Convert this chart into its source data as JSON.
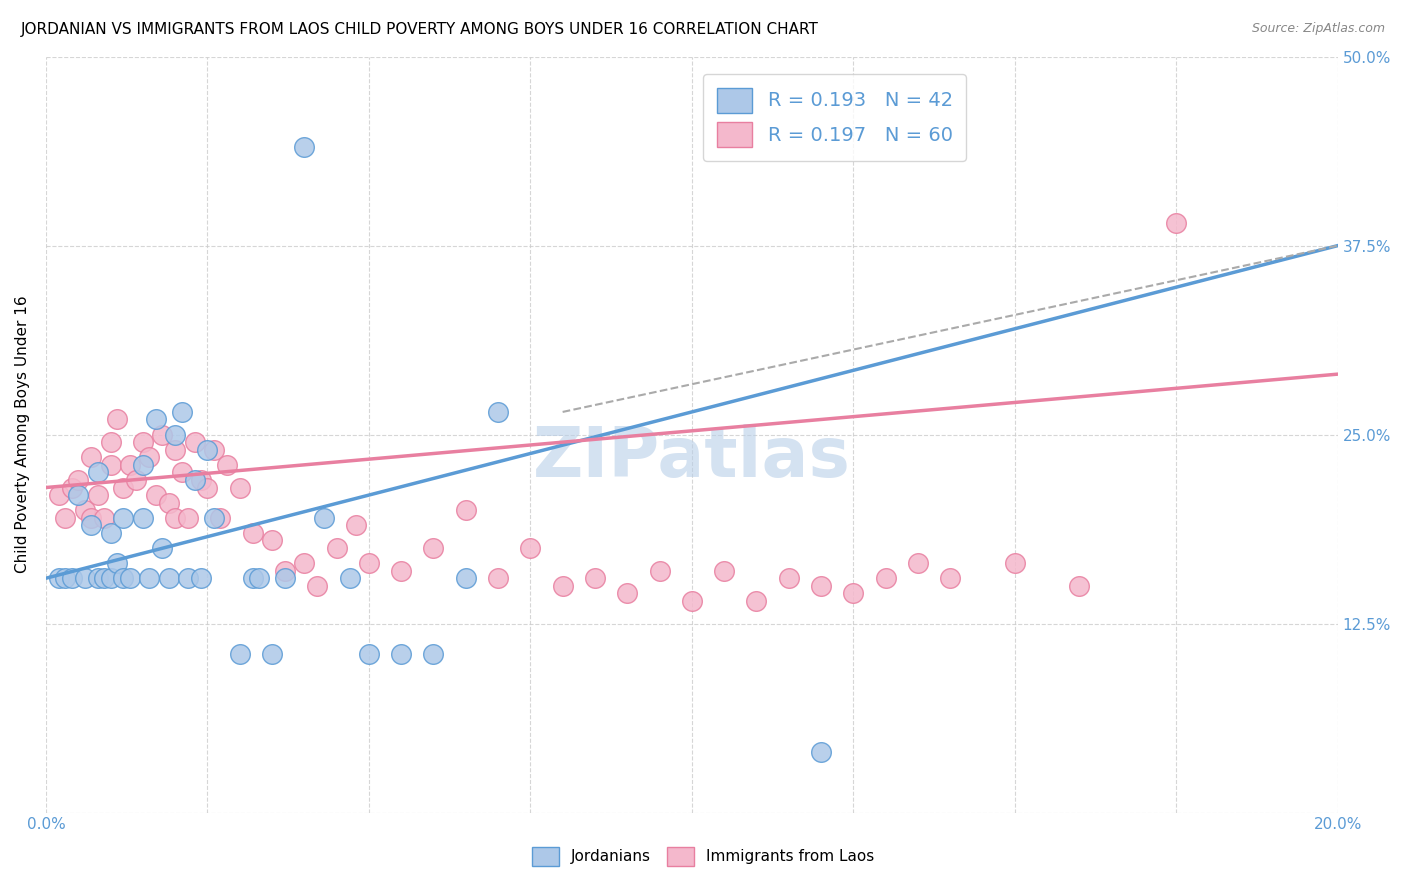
{
  "title": "JORDANIAN VS IMMIGRANTS FROM LAOS CHILD POVERTY AMONG BOYS UNDER 16 CORRELATION CHART",
  "source": "Source: ZipAtlas.com",
  "ylabel": "Child Poverty Among Boys Under 16",
  "ytick_vals": [
    0.0,
    0.125,
    0.25,
    0.375,
    0.5
  ],
  "ytick_labels_right": [
    "",
    "12.5%",
    "25.0%",
    "37.5%",
    "50.0%"
  ],
  "xlim": [
    0.0,
    0.2
  ],
  "ylim": [
    0.0,
    0.5
  ],
  "xtick_vals": [
    0.0,
    0.025,
    0.05,
    0.075,
    0.1,
    0.125,
    0.15,
    0.175,
    0.2
  ],
  "xtick_labels": [
    "0.0%",
    "",
    "",
    "",
    "",
    "",
    "",
    "",
    "20.0%"
  ],
  "legend_entries": [
    {
      "label": "R = 0.193   N = 42",
      "facecolor": "#adc8e8",
      "edgecolor": "#5b9bd5"
    },
    {
      "label": "R = 0.197   N = 60",
      "facecolor": "#f4b8cc",
      "edgecolor": "#e87fa0"
    }
  ],
  "watermark": "ZIPatlas",
  "blue_color": "#5b9bd5",
  "pink_color": "#e87fa0",
  "blue_marker_face": "#adc8e8",
  "pink_marker_face": "#f4b8cc",
  "jordanians_x": [
    0.002,
    0.003,
    0.004,
    0.005,
    0.006,
    0.007,
    0.008,
    0.008,
    0.009,
    0.01,
    0.01,
    0.011,
    0.012,
    0.012,
    0.013,
    0.015,
    0.015,
    0.016,
    0.017,
    0.018,
    0.019,
    0.02,
    0.021,
    0.022,
    0.023,
    0.024,
    0.025,
    0.026,
    0.03,
    0.032,
    0.033,
    0.035,
    0.037,
    0.04,
    0.043,
    0.047,
    0.05,
    0.055,
    0.06,
    0.065,
    0.07,
    0.12
  ],
  "jordanians_y": [
    0.155,
    0.155,
    0.155,
    0.21,
    0.155,
    0.19,
    0.225,
    0.155,
    0.155,
    0.185,
    0.155,
    0.165,
    0.155,
    0.195,
    0.155,
    0.195,
    0.23,
    0.155,
    0.26,
    0.175,
    0.155,
    0.25,
    0.265,
    0.155,
    0.22,
    0.155,
    0.24,
    0.195,
    0.105,
    0.155,
    0.155,
    0.105,
    0.155,
    0.44,
    0.195,
    0.155,
    0.105,
    0.105,
    0.105,
    0.155,
    0.265,
    0.04
  ],
  "laos_x": [
    0.002,
    0.003,
    0.004,
    0.005,
    0.006,
    0.007,
    0.007,
    0.008,
    0.009,
    0.01,
    0.01,
    0.011,
    0.012,
    0.013,
    0.014,
    0.015,
    0.016,
    0.017,
    0.018,
    0.019,
    0.02,
    0.02,
    0.021,
    0.022,
    0.023,
    0.024,
    0.025,
    0.026,
    0.027,
    0.028,
    0.03,
    0.032,
    0.035,
    0.037,
    0.04,
    0.042,
    0.045,
    0.048,
    0.05,
    0.055,
    0.06,
    0.065,
    0.07,
    0.075,
    0.08,
    0.085,
    0.09,
    0.095,
    0.1,
    0.105,
    0.11,
    0.115,
    0.12,
    0.125,
    0.13,
    0.135,
    0.14,
    0.15,
    0.16,
    0.175
  ],
  "laos_y": [
    0.21,
    0.195,
    0.215,
    0.22,
    0.2,
    0.195,
    0.235,
    0.21,
    0.195,
    0.23,
    0.245,
    0.26,
    0.215,
    0.23,
    0.22,
    0.245,
    0.235,
    0.21,
    0.25,
    0.205,
    0.195,
    0.24,
    0.225,
    0.195,
    0.245,
    0.22,
    0.215,
    0.24,
    0.195,
    0.23,
    0.215,
    0.185,
    0.18,
    0.16,
    0.165,
    0.15,
    0.175,
    0.19,
    0.165,
    0.16,
    0.175,
    0.2,
    0.155,
    0.175,
    0.15,
    0.155,
    0.145,
    0.16,
    0.14,
    0.16,
    0.14,
    0.155,
    0.15,
    0.145,
    0.155,
    0.165,
    0.155,
    0.165,
    0.15,
    0.39
  ],
  "blue_line": {
    "x0": 0.0,
    "y0": 0.155,
    "x1": 0.2,
    "y1": 0.375
  },
  "pink_line": {
    "x0": 0.0,
    "y0": 0.215,
    "x1": 0.2,
    "y1": 0.29
  },
  "dashed_line": {
    "x0": 0.08,
    "y0": 0.265,
    "x1": 0.2,
    "y1": 0.375
  },
  "grid_color": "#cccccc",
  "title_fontsize": 11,
  "tick_color": "#5b9bd5",
  "watermark_color": "#b8cfe8",
  "watermark_fontsize": 50
}
